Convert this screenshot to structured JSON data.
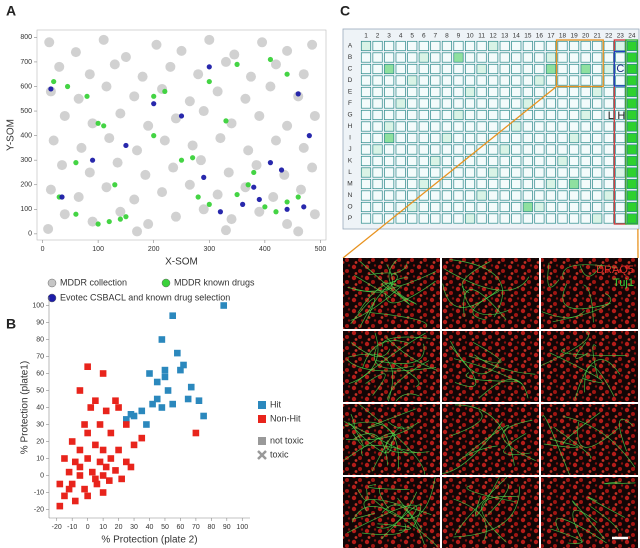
{
  "panels": [
    "A",
    "B",
    "C"
  ],
  "chart_data": [
    {
      "type": "scatter",
      "x_label": "X-SOM",
      "y_label": "Y-SOM",
      "xlim": [
        -10,
        510
      ],
      "ylim": [
        -25,
        830
      ],
      "xticks": [
        0,
        100,
        200,
        300,
        400,
        500
      ],
      "yticks": [
        0,
        100,
        200,
        300,
        400,
        500,
        600,
        700,
        800
      ],
      "series": [
        {
          "name": "MDDR collection",
          "color": "#c6c6c6",
          "x": [
            12,
            60,
            110,
            150,
            205,
            250,
            300,
            345,
            395,
            440,
            485,
            30,
            85,
            130,
            180,
            230,
            280,
            330,
            375,
            420,
            470,
            15,
            65,
            115,
            165,
            215,
            265,
            315,
            365,
            410,
            460,
            40,
            90,
            140,
            190,
            240,
            290,
            340,
            390,
            440,
            490,
            20,
            70,
            120,
            170,
            220,
            270,
            320,
            370,
            420,
            470,
            35,
            85,
            135,
            185,
            235,
            285,
            335,
            385,
            435,
            485,
            15,
            65,
            115,
            165,
            215,
            265,
            315,
            365,
            415,
            465,
            40,
            90,
            140,
            190,
            240,
            290,
            340,
            390,
            440,
            490,
            10,
            170,
            330,
            460
          ],
          "values": [
            780,
            740,
            790,
            720,
            770,
            745,
            790,
            730,
            780,
            745,
            770,
            680,
            650,
            690,
            640,
            680,
            650,
            700,
            640,
            690,
            650,
            580,
            550,
            600,
            560,
            590,
            540,
            580,
            550,
            600,
            560,
            480,
            450,
            490,
            440,
            470,
            500,
            450,
            480,
            440,
            480,
            380,
            350,
            390,
            340,
            380,
            360,
            390,
            340,
            380,
            350,
            280,
            250,
            290,
            240,
            270,
            300,
            250,
            280,
            240,
            270,
            180,
            150,
            190,
            140,
            170,
            200,
            160,
            190,
            150,
            180,
            80,
            50,
            90,
            40,
            70,
            100,
            60,
            90,
            40,
            80,
            20,
            10,
            15,
            10
          ]
        },
        {
          "name": "MDDR known drugs",
          "color": "#3ad23a",
          "x": [
            20,
            45,
            80,
            100,
            110,
            130,
            60,
            100,
            120,
            140,
            150,
            250,
            270,
            280,
            300,
            350,
            370,
            380,
            400,
            420,
            440,
            460,
            200,
            220,
            300,
            350,
            410,
            440,
            200,
            60,
            30,
            330
          ],
          "values": [
            620,
            600,
            560,
            450,
            440,
            200,
            290,
            40,
            50,
            60,
            70,
            300,
            310,
            150,
            120,
            160,
            200,
            250,
            110,
            90,
            130,
            150,
            560,
            580,
            620,
            690,
            710,
            650,
            400,
            80,
            150,
            460
          ]
        },
        {
          "name": "Evotec CSBACL and known drug selection",
          "color": "#1c1ca8",
          "x": [
            15,
            35,
            90,
            200,
            250,
            290,
            320,
            360,
            380,
            390,
            410,
            430,
            440,
            470,
            460,
            300,
            150,
            480
          ],
          "values": [
            590,
            150,
            300,
            530,
            480,
            230,
            90,
            120,
            190,
            140,
            290,
            260,
            100,
            110,
            570,
            680,
            360,
            400
          ]
        }
      ]
    },
    {
      "type": "scatter",
      "x_label": "% Protection (plate 2)",
      "y_label": "% Protection (plate1)",
      "xlim": [
        -25,
        105
      ],
      "ylim": [
        -25,
        105
      ],
      "xticks": [
        -20,
        -10,
        0,
        10,
        20,
        30,
        40,
        50,
        60,
        70,
        80,
        90,
        100
      ],
      "yticks": [
        -20,
        -10,
        0,
        10,
        20,
        30,
        40,
        50,
        60,
        70,
        80,
        90,
        100
      ],
      "series": [
        {
          "name": "Hit",
          "color": "#2b88bd",
          "x": [
            88,
            55,
            48,
            75,
            58,
            62,
            50,
            40,
            45,
            52,
            65,
            72,
            42,
            55,
            48,
            35,
            30,
            25,
            28,
            60,
            38,
            45,
            67,
            50
          ],
          "values": [
            100,
            94,
            80,
            35,
            72,
            65,
            62,
            60,
            55,
            50,
            45,
            44,
            42,
            42,
            40,
            38,
            35,
            33,
            36,
            62,
            30,
            45,
            52,
            58
          ]
        },
        {
          "name": "Non-Hit",
          "color": "#e8241c",
          "x": [
            70,
            0,
            -5,
            10,
            5,
            2,
            20,
            18,
            12,
            -2,
            8,
            25,
            15,
            0,
            -10,
            -5,
            5,
            10,
            20,
            30,
            35,
            -15,
            -8,
            0,
            8,
            15,
            25,
            -12,
            -5,
            3,
            10,
            18,
            28,
            -18,
            -10,
            -2,
            6,
            14,
            22,
            -15,
            -8,
            0,
            10,
            -18,
            -5,
            5,
            -12,
            12
          ],
          "values": [
            25,
            64,
            50,
            60,
            44,
            40,
            40,
            44,
            38,
            30,
            30,
            30,
            25,
            25,
            20,
            15,
            18,
            15,
            15,
            18,
            22,
            10,
            8,
            10,
            8,
            10,
            8,
            2,
            0,
            2,
            0,
            3,
            5,
            -5,
            -5,
            -8,
            -5,
            -3,
            -2,
            -12,
            -15,
            -12,
            -10,
            -18,
            5,
            -2,
            -8,
            5
          ]
        }
      ],
      "markers": [
        {
          "name": "not toxic",
          "color": "#999999"
        },
        {
          "name": "toxic",
          "color": "#999999"
        }
      ]
    }
  ],
  "plate": {
    "column_labels": [
      1,
      2,
      3,
      4,
      5,
      6,
      7,
      8,
      9,
      10,
      11,
      12,
      13,
      14,
      15,
      16,
      17,
      18,
      19,
      20,
      21,
      22,
      23,
      24
    ],
    "row_labels": [
      "A",
      "B",
      "C",
      "D",
      "E",
      "F",
      "G",
      "H",
      "I",
      "J",
      "K",
      "L",
      "M",
      "N",
      "O",
      "P"
    ],
    "control_labels": [
      "C",
      "L",
      "H"
    ]
  },
  "micrographs": {
    "stains": [
      "DRAQ5",
      "Tuj1"
    ]
  }
}
